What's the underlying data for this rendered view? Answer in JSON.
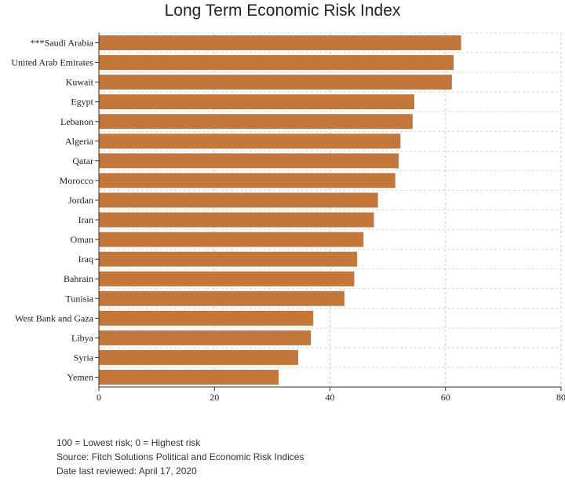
{
  "chart_data": {
    "type": "bar",
    "orientation": "horizontal",
    "title": "Long Term Economic Risk Index",
    "xlabel": "",
    "ylabel": "",
    "xlim": [
      0,
      80
    ],
    "x_ticks": [
      0,
      20,
      40,
      60,
      80
    ],
    "grid": true,
    "bar_color": "#c4773a",
    "categories": [
      "***Saudi Arabia",
      "United Arab Emirates",
      "Kuwait",
      "Egypt",
      "Lebanon",
      "Algeria",
      "Qatar",
      "Morocco",
      "Jordan",
      "Iran",
      "Oman",
      "Iraq",
      "Bahrain",
      "Tunisia",
      "West Bank and Gaza",
      "Libya",
      "Syria",
      "Yemen"
    ],
    "values": [
      62.7,
      61.4,
      61.1,
      54.6,
      54.3,
      52.2,
      51.9,
      51.3,
      48.3,
      47.6,
      45.8,
      44.7,
      44.2,
      42.5,
      37.1,
      36.7,
      34.5,
      31.1
    ]
  },
  "footnotes": [
    "100 = Lowest risk; 0 = Highest risk",
    "Source: Fitch Solutions Political and Economic Risk Indices",
    "Date last reviewed: April 17, 2020"
  ]
}
